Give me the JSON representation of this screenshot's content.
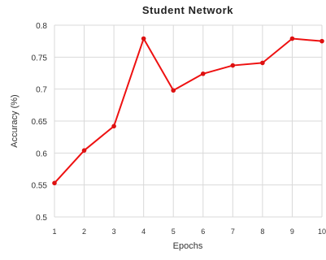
{
  "chart_data": {
    "type": "line",
    "title": "Student Network",
    "xlabel": "Epochs",
    "ylabel": "Accuracy (%)",
    "x": [
      1,
      2,
      3,
      4,
      5,
      6,
      7,
      8,
      9,
      10
    ],
    "series": [
      {
        "values": [
          0.553,
          0.604,
          0.642,
          0.779,
          0.698,
          0.724,
          0.737,
          0.741,
          0.779,
          0.775
        ]
      }
    ],
    "xticks": [
      "1",
      "2",
      "3",
      "4",
      "5",
      "6",
      "7",
      "8",
      "9",
      "10"
    ],
    "yticks": [
      "0.5",
      "0.55",
      "0.6",
      "0.65",
      "0.7",
      "0.75",
      "0.8"
    ],
    "ylim": [
      0.5,
      0.8
    ],
    "xlim": [
      1,
      10
    ],
    "grid": true,
    "colors": {
      "line": "#ee1111",
      "marker": "#dd1111",
      "grid": "#d9d9d9"
    }
  }
}
